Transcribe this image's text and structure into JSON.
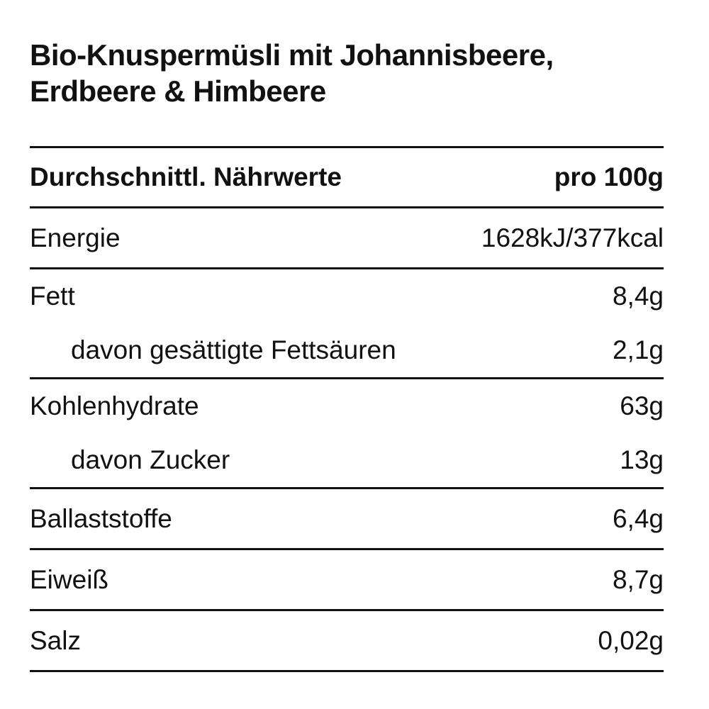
{
  "title_lines": [
    "Bio-Knuspermüsli mit Johannisbeere,",
    "Erdbeere & Himbeere"
  ],
  "table": {
    "header": {
      "label": "Durchschnittl. Nährwerte",
      "value": "pro 100g"
    },
    "groups": [
      {
        "rows": [
          {
            "label": "Energie",
            "value": "1628kJ/377kcal",
            "indent": false
          }
        ]
      },
      {
        "rows": [
          {
            "label": "Fett",
            "value": "8,4g",
            "indent": false
          },
          {
            "label": "davon gesättigte Fettsäuren",
            "value": "2,1g",
            "indent": true
          }
        ]
      },
      {
        "rows": [
          {
            "label": "Kohlenhydrate",
            "value": "63g",
            "indent": false
          },
          {
            "label": "davon Zucker",
            "value": "13g",
            "indent": true
          }
        ]
      },
      {
        "rows": [
          {
            "label": "Ballaststoffe",
            "value": "6,4g",
            "indent": false
          }
        ]
      },
      {
        "rows": [
          {
            "label": "Eiweiß",
            "value": "8,7g",
            "indent": false
          }
        ]
      },
      {
        "rows": [
          {
            "label": "Salz",
            "value": "0,02g",
            "indent": false
          }
        ]
      }
    ]
  },
  "colors": {
    "text": "#111111",
    "background": "#ffffff",
    "rule": "#111111"
  }
}
